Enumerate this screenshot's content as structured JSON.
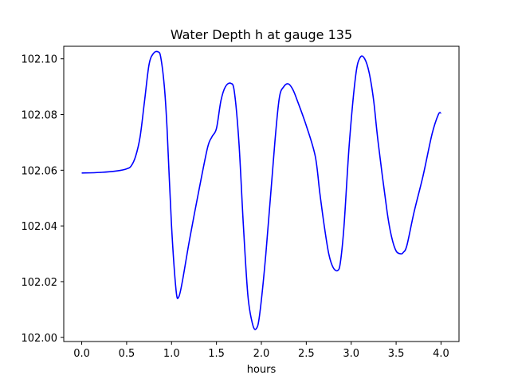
{
  "chart_data": {
    "type": "line",
    "title": "Water Depth h at gauge 135",
    "xlabel": "hours",
    "ylabel": "",
    "xlim": [
      -0.2,
      4.2
    ],
    "ylim": [
      101.9985,
      102.1045
    ],
    "xticks": [
      "0.0",
      "0.5",
      "1.0",
      "1.5",
      "2.0",
      "2.5",
      "3.0",
      "3.5",
      "4.0"
    ],
    "xtick_values": [
      0.0,
      0.5,
      1.0,
      1.5,
      2.0,
      2.5,
      3.0,
      3.5,
      4.0
    ],
    "yticks": [
      "102.00",
      "102.02",
      "102.04",
      "102.06",
      "102.08",
      "102.10"
    ],
    "ytick_values": [
      102.0,
      102.02,
      102.04,
      102.06,
      102.08,
      102.1
    ],
    "grid": false,
    "color": "#0000ff",
    "series": [
      {
        "x": [
          0.0,
          0.2,
          0.4,
          0.5,
          0.55,
          0.6,
          0.65,
          0.7,
          0.75,
          0.8,
          0.85,
          0.88,
          0.92,
          0.95,
          1.0,
          1.05,
          1.08,
          1.12,
          1.2,
          1.3,
          1.4,
          1.45,
          1.5,
          1.55,
          1.6,
          1.66,
          1.7,
          1.75,
          1.8,
          1.85,
          1.9,
          1.94,
          1.98,
          2.05,
          2.15,
          2.2,
          2.25,
          2.3,
          2.35,
          2.4,
          2.5,
          2.6,
          2.65,
          2.7,
          2.75,
          2.8,
          2.85,
          2.88,
          2.92,
          2.98,
          3.05,
          3.1,
          3.15,
          3.2,
          3.25,
          3.3,
          3.4,
          3.45,
          3.5,
          3.55,
          3.58,
          3.62,
          3.7,
          3.8,
          3.9,
          3.97,
          4.0
        ],
        "y": [
          102.059,
          102.0592,
          102.0598,
          102.0605,
          102.0615,
          102.065,
          102.072,
          102.085,
          102.098,
          102.102,
          102.1025,
          102.1005,
          102.09,
          102.075,
          102.04,
          102.017,
          102.0145,
          102.02,
          102.035,
          102.052,
          102.068,
          102.072,
          102.075,
          102.085,
          102.09,
          102.0912,
          102.088,
          102.07,
          102.04,
          102.015,
          102.005,
          102.003,
          102.008,
          102.03,
          102.07,
          102.086,
          102.09,
          102.091,
          102.089,
          102.085,
          102.076,
          102.065,
          102.052,
          102.04,
          102.03,
          102.025,
          102.024,
          102.027,
          102.04,
          102.07,
          102.094,
          102.1005,
          102.1,
          102.095,
          102.085,
          102.07,
          102.045,
          102.036,
          102.031,
          102.03,
          102.0305,
          102.033,
          102.045,
          102.058,
          102.073,
          102.08,
          102.0805
        ]
      }
    ]
  }
}
